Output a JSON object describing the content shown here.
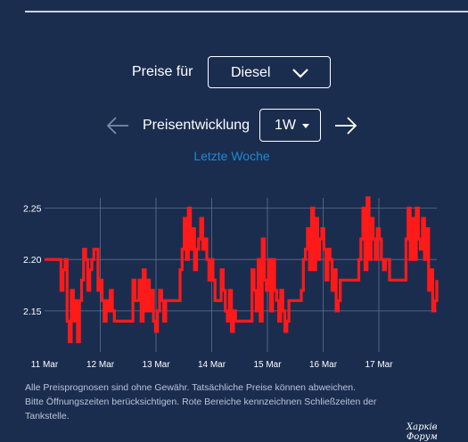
{
  "header": {
    "fuel_label": "Preise für",
    "fuel_value": "Diesel"
  },
  "trend": {
    "label": "Preisentwicklung",
    "period_value": "1W",
    "period_link": "Letzte Woche"
  },
  "icons": {
    "prev": "arrow-left-icon",
    "next": "arrow-right-icon",
    "dropdown": "chevron-down-icon",
    "caret": "caret-down-icon"
  },
  "chart_data": {
    "type": "line",
    "title": "",
    "xlabel": "",
    "ylabel": "",
    "x_ticks": [
      "11 Mar",
      "12 Mar",
      "13 Mar",
      "14 Mar",
      "15 Mar",
      "16 Mar",
      "17 Mar"
    ],
    "y_ticks": [
      "2.25",
      "2.20",
      "2.15"
    ],
    "ylim": [
      2.11,
      2.26
    ],
    "grid": true,
    "line_color": "#ff1a1a",
    "series": [
      {
        "values": [
          2.2,
          2.2,
          2.2,
          2.2,
          2.2,
          2.2,
          2.2,
          2.2,
          2.17,
          2.19,
          2.2,
          2.14,
          2.12,
          2.17,
          2.14,
          2.16,
          2.12,
          2.16,
          2.18,
          2.21,
          2.2,
          2.17,
          2.19,
          2.2,
          2.21,
          2.21,
          2.17,
          2.18,
          2.16,
          2.14,
          2.16,
          2.15,
          2.17,
          2.15,
          2.14,
          2.14,
          2.14,
          2.14,
          2.14,
          2.14,
          2.14,
          2.14,
          2.14,
          2.18,
          2.16,
          2.16,
          2.18,
          2.14,
          2.19,
          2.15,
          2.18,
          2.15,
          2.17,
          2.14,
          2.13,
          2.15,
          2.17,
          2.16,
          2.14,
          2.16,
          2.16,
          2.16,
          2.16,
          2.16,
          2.16,
          2.16,
          2.19,
          2.21,
          2.24,
          2.2,
          2.25,
          2.21,
          2.23,
          2.19,
          2.21,
          2.22,
          2.24,
          2.21,
          2.22,
          2.2,
          2.18,
          2.2,
          2.18,
          2.16,
          2.16,
          2.16,
          2.19,
          2.17,
          2.15,
          2.14,
          2.17,
          2.13,
          2.15,
          2.14,
          2.14,
          2.14,
          2.14,
          2.14,
          2.14,
          2.14,
          2.14,
          2.19,
          2.17,
          2.15,
          2.2,
          2.14,
          2.22,
          2.18,
          2.17,
          2.2,
          2.15,
          2.2,
          2.17,
          2.16,
          2.14,
          2.17,
          2.15,
          2.13,
          2.14,
          2.16,
          2.16,
          2.16,
          2.16,
          2.16,
          2.16,
          2.17,
          2.2,
          2.21,
          2.23,
          2.19,
          2.25,
          2.19,
          2.24,
          2.2,
          2.22,
          2.23,
          2.21,
          2.18,
          2.21,
          2.2,
          2.17,
          2.19,
          2.15,
          2.16,
          2.18,
          2.18,
          2.18,
          2.18,
          2.18,
          2.18,
          2.18,
          2.18,
          2.18,
          2.2,
          2.22,
          2.25,
          2.19,
          2.26,
          2.2,
          2.24,
          2.22,
          2.2,
          2.23,
          2.22,
          2.2,
          2.19,
          2.2,
          2.2,
          2.18,
          2.18,
          2.18,
          2.18,
          2.18,
          2.18,
          2.18,
          2.18,
          2.22,
          2.25,
          2.2,
          2.24,
          2.2,
          2.25,
          2.22,
          2.21,
          2.24,
          2.2,
          2.23,
          2.17,
          2.19,
          2.15,
          2.16,
          2.18
        ]
      }
    ]
  },
  "notes": {
    "line1": "Alle Preisprognosen sind ohne Gewähr. Tatsächliche Preise können abweichen.",
    "line2": "Bitte Öffnungszeiten berücksichtigen. Rote Bereiche kennzeichnen Schließzeiten der",
    "line3": "Tankstelle."
  },
  "watermark": "Харків Форум"
}
